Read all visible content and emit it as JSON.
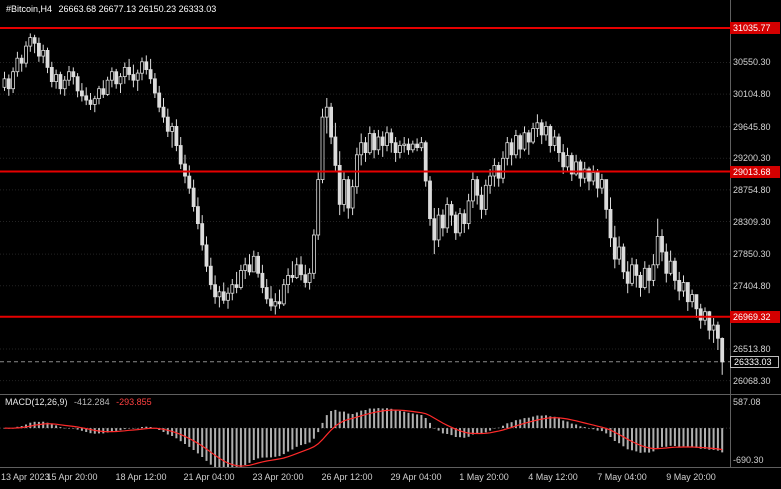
{
  "quote_bar": {
    "symbol": "#Bitcoin,H4",
    "ohlc_text": "26663.68 26677.13 26150.23 26333.03"
  },
  "macd_panel": {
    "label": "MACD(12,26,9)",
    "macd_value": "-412.284",
    "signal_value": "-293.855",
    "axis_max": "587.08",
    "axis_min": "-690.30"
  },
  "colors": {
    "background": "#000000",
    "candle_outline": "#dcdcdc",
    "bull_fill": "#000000",
    "bear_fill": "#dcdcdc",
    "level_line": "#e60000",
    "level_badge": "#d40000",
    "grid": "#232323",
    "axis_text": "#cfcfcf",
    "panel_divider": "#5f5f5f",
    "macd_histogram": "#b0b0b0",
    "macd_signal": "#ff2a2a",
    "current_price_line": "#8a8a8a"
  },
  "chart_data": {
    "type": "candlestick",
    "symbol": "#Bitcoin",
    "timeframe": "H4",
    "current_ohlc": {
      "open": 26663.68,
      "high": 26677.13,
      "low": 26150.23,
      "close": 26333.03
    },
    "current_price": 26333.03,
    "resistance_levels": [
      31035.77,
      29013.68,
      26969.32
    ],
    "price_ticks": [
      30550.3,
      30104.8,
      29645.8,
      29200.3,
      28754.8,
      28309.3,
      27850.3,
      27404.8,
      26513.8,
      26068.3
    ],
    "price_range": {
      "max": 31430,
      "min": 25880
    },
    "time_labels": [
      "13 Apr 2023",
      "15 Apr 20:00",
      "18 Apr 12:00",
      "21 Apr 04:00",
      "23 Apr 20:00",
      "26 Apr 12:00",
      "29 Apr 04:00",
      "1 May 20:00",
      "4 May 12:00",
      "7 May 04:00",
      "9 May 20:00"
    ],
    "candles_per_time_label": 16,
    "first_open": 30200,
    "candles_hlc": [
      [
        30420,
        30150,
        30320
      ],
      [
        30380,
        30080,
        30180
      ],
      [
        30480,
        30120,
        30420
      ],
      [
        30700,
        30350,
        30610
      ],
      [
        30660,
        30420,
        30540
      ],
      [
        30850,
        30480,
        30780
      ],
      [
        30960,
        30700,
        30900
      ],
      [
        30940,
        30680,
        30820
      ],
      [
        30900,
        30560,
        30640
      ],
      [
        30800,
        30540,
        30720
      ],
      [
        30760,
        30400,
        30480
      ],
      [
        30560,
        30200,
        30280
      ],
      [
        30450,
        30180,
        30380
      ],
      [
        30420,
        30100,
        30180
      ],
      [
        30360,
        30080,
        30300
      ],
      [
        30500,
        30220,
        30420
      ],
      [
        30480,
        30240,
        30350
      ],
      [
        30400,
        30060,
        30150
      ],
      [
        30260,
        30000,
        30080
      ],
      [
        30200,
        29950,
        30020
      ],
      [
        30120,
        29880,
        29960
      ],
      [
        30080,
        29850,
        30040
      ],
      [
        30220,
        29960,
        30180
      ],
      [
        30300,
        30050,
        30100
      ],
      [
        30350,
        30080,
        30300
      ],
      [
        30480,
        30200,
        30420
      ],
      [
        30460,
        30180,
        30250
      ],
      [
        30400,
        30120,
        30350
      ],
      [
        30550,
        30250,
        30480
      ],
      [
        30600,
        30300,
        30380
      ],
      [
        30520,
        30200,
        30300
      ],
      [
        30450,
        30150,
        30400
      ],
      [
        30620,
        30300,
        30560
      ],
      [
        30650,
        30380,
        30450
      ],
      [
        30600,
        30250,
        30320
      ],
      [
        30400,
        30050,
        30120
      ],
      [
        30220,
        29850,
        29920
      ],
      [
        30050,
        29700,
        29780
      ],
      [
        29900,
        29500,
        29580
      ],
      [
        29700,
        29350,
        29650
      ],
      [
        29750,
        29300,
        29380
      ],
      [
        29500,
        29050,
        29120
      ],
      [
        29250,
        28850,
        28950
      ],
      [
        29100,
        28700,
        28780
      ],
      [
        28900,
        28450,
        28520
      ],
      [
        28650,
        28200,
        28280
      ],
      [
        28400,
        27900,
        27980
      ],
      [
        28100,
        27600,
        27680
      ],
      [
        27800,
        27350,
        27420
      ],
      [
        27550,
        27150,
        27250
      ],
      [
        27400,
        27100,
        27320
      ],
      [
        27450,
        27150,
        27200
      ],
      [
        27380,
        27080,
        27300
      ],
      [
        27500,
        27200,
        27420
      ],
      [
        27600,
        27300,
        27380
      ],
      [
        27700,
        27350,
        27620
      ],
      [
        27800,
        27500,
        27700
      ],
      [
        27850,
        27550,
        27600
      ],
      [
        27900,
        27600,
        27820
      ],
      [
        27880,
        27520,
        27580
      ],
      [
        27700,
        27300,
        27380
      ],
      [
        27500,
        27150,
        27220
      ],
      [
        27400,
        27050,
        27120
      ],
      [
        27300,
        27000,
        27180
      ],
      [
        27350,
        27080,
        27150
      ],
      [
        27500,
        27120,
        27420
      ],
      [
        27650,
        27300,
        27550
      ],
      [
        27750,
        27450,
        27520
      ],
      [
        27800,
        27500,
        27700
      ],
      [
        27820,
        27480,
        27560
      ],
      [
        27700,
        27380,
        27450
      ],
      [
        27650,
        27350,
        27580
      ],
      [
        28200,
        27500,
        28120
      ],
      [
        29000,
        28050,
        28900
      ],
      [
        29900,
        28850,
        29780
      ],
      [
        30050,
        29550,
        29920
      ],
      [
        29980,
        29400,
        29500
      ],
      [
        29700,
        29000,
        29100
      ],
      [
        29300,
        28400,
        28550
      ],
      [
        29000,
        28450,
        28900
      ],
      [
        28950,
        28350,
        28500
      ],
      [
        28900,
        28400,
        28800
      ],
      [
        29350,
        28700,
        29250
      ],
      [
        29550,
        29100,
        29420
      ],
      [
        29500,
        29150,
        29280
      ],
      [
        29650,
        29250,
        29550
      ],
      [
        29600,
        29200,
        29320
      ],
      [
        29600,
        29250,
        29500
      ],
      [
        29580,
        29220,
        29380
      ],
      [
        29650,
        29300,
        29560
      ],
      [
        29620,
        29280,
        29420
      ],
      [
        29500,
        29150,
        29280
      ],
      [
        29450,
        29200,
        29380
      ],
      [
        29500,
        29280,
        29400
      ],
      [
        29480,
        29250,
        29320
      ],
      [
        29450,
        29280,
        29400
      ],
      [
        29480,
        29300,
        29350
      ],
      [
        29500,
        29300,
        29420
      ],
      [
        29450,
        28800,
        28880
      ],
      [
        28950,
        28250,
        28350
      ],
      [
        28500,
        27850,
        28050
      ],
      [
        28500,
        27950,
        28400
      ],
      [
        28480,
        28100,
        28220
      ],
      [
        28650,
        28150,
        28550
      ],
      [
        28600,
        28250,
        28400
      ],
      [
        28450,
        28050,
        28150
      ],
      [
        28500,
        28100,
        28420
      ],
      [
        28480,
        28150,
        28280
      ],
      [
        28700,
        28200,
        28600
      ],
      [
        29000,
        28500,
        28900
      ],
      [
        28950,
        28550,
        28680
      ],
      [
        28800,
        28350,
        28480
      ],
      [
        28900,
        28400,
        28820
      ],
      [
        29050,
        28700,
        28950
      ],
      [
        29200,
        28800,
        29100
      ],
      [
        29150,
        28800,
        28920
      ],
      [
        29300,
        28850,
        29200
      ],
      [
        29500,
        29100,
        29420
      ],
      [
        29480,
        29100,
        29250
      ],
      [
        29600,
        29200,
        29520
      ],
      [
        29550,
        29200,
        29330
      ],
      [
        29650,
        29300,
        29560
      ],
      [
        29600,
        29250,
        29430
      ],
      [
        29700,
        29400,
        29620
      ],
      [
        29820,
        29500,
        29700
      ],
      [
        29750,
        29400,
        29530
      ],
      [
        29720,
        29450,
        29650
      ],
      [
        29680,
        29280,
        29380
      ],
      [
        29600,
        29300,
        29500
      ],
      [
        29550,
        29150,
        29280
      ],
      [
        29400,
        28980,
        29080
      ],
      [
        29350,
        29000,
        29240
      ],
      [
        29280,
        28880,
        28980
      ],
      [
        29250,
        28950,
        29150
      ],
      [
        29180,
        28800,
        28920
      ],
      [
        29150,
        28850,
        29050
      ],
      [
        29080,
        28750,
        28880
      ],
      [
        29100,
        28820,
        29000
      ],
      [
        29050,
        28650,
        28780
      ],
      [
        28980,
        28700,
        28900
      ],
      [
        28900,
        28350,
        28480
      ],
      [
        28650,
        27950,
        28080
      ],
      [
        28250,
        27650,
        27780
      ],
      [
        28100,
        27700,
        27950
      ],
      [
        28000,
        27500,
        27600
      ],
      [
        27750,
        27300,
        27440
      ],
      [
        27800,
        27400,
        27700
      ],
      [
        27780,
        27380,
        27550
      ],
      [
        27600,
        27250,
        27380
      ],
      [
        27750,
        27350,
        27650
      ],
      [
        27700,
        27300,
        27480
      ],
      [
        27850,
        27400,
        27700
      ],
      [
        28350,
        27650,
        28100
      ],
      [
        28200,
        27750,
        27880
      ],
      [
        28000,
        27450,
        27580
      ],
      [
        27900,
        27550,
        27750
      ],
      [
        27800,
        27350,
        27480
      ],
      [
        27600,
        27200,
        27330
      ],
      [
        27550,
        27250,
        27450
      ],
      [
        27400,
        27050,
        27180
      ],
      [
        27350,
        27100,
        27280
      ],
      [
        27250,
        26950,
        27080
      ],
      [
        27150,
        26800,
        26920
      ],
      [
        27100,
        26850,
        27040
      ],
      [
        27050,
        26650,
        26780
      ],
      [
        26950,
        26600,
        26850
      ],
      [
        26900,
        26500,
        26663.68
      ],
      [
        26677.13,
        26150.23,
        26333.03
      ]
    ],
    "macd": {
      "fast": 12,
      "slow": 26,
      "signal": 9,
      "axis_max": 587.08,
      "axis_min": -690.3,
      "current_macd": -412.284,
      "current_signal": -293.855
    }
  }
}
